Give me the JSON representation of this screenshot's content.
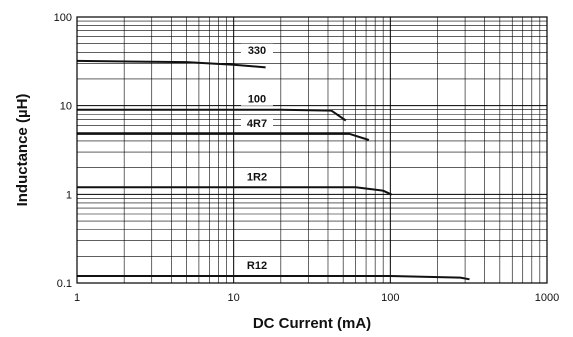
{
  "chart_data": {
    "type": "line",
    "title": "",
    "xlabel": "DC Current (mA)",
    "ylabel": "Inductance (µH)",
    "x_scale": "log",
    "y_scale": "log",
    "xlim": [
      1,
      1000
    ],
    "ylim": [
      0.1,
      100
    ],
    "grid": true,
    "x_ticks": [
      1,
      10,
      100,
      1000
    ],
    "x_tick_labels": [
      "1",
      "10",
      "100",
      "1000"
    ],
    "y_ticks": [
      0.1,
      1,
      10,
      100
    ],
    "y_tick_labels": [
      "0.1",
      "1",
      "10",
      "100"
    ],
    "series": [
      {
        "name": "330",
        "x": [
          1,
          5,
          10,
          16
        ],
        "y": [
          32,
          31,
          29,
          27
        ]
      },
      {
        "name": "100",
        "x": [
          1,
          20,
          42,
          52
        ],
        "y": [
          9,
          9,
          8.8,
          6.8
        ]
      },
      {
        "name": "4R7",
        "x": [
          1,
          30,
          55,
          73
        ],
        "y": [
          4.8,
          4.8,
          4.8,
          4.1
        ]
      },
      {
        "name": "1R2",
        "x": [
          1,
          60,
          90,
          102
        ],
        "y": [
          1.2,
          1.2,
          1.1,
          0.99
        ]
      },
      {
        "name": "R12",
        "x": [
          1,
          100,
          280,
          320
        ],
        "y": [
          0.12,
          0.12,
          0.115,
          0.11
        ]
      }
    ]
  }
}
